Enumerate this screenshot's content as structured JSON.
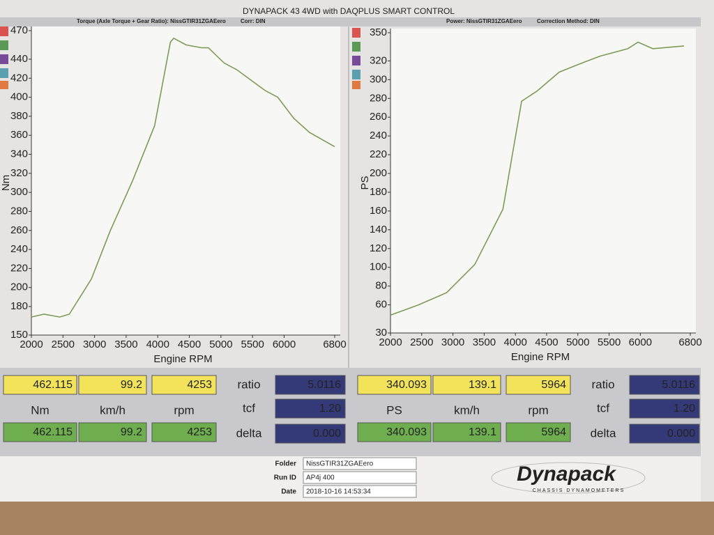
{
  "header": "DYNAPACK 43 4WD with DAQPLUS SMART CONTROL",
  "chart_data": [
    {
      "type": "line",
      "title": "Torque (Axle Torque + Gear Ratio): NissGTIR31ZGAEero",
      "corr": "Corr: DIN",
      "x_label": "Engine RPM",
      "y_label": "Nm",
      "color": "#7d9a55",
      "grid": false,
      "x": [
        2000,
        2200,
        2450,
        2600,
        2950,
        3250,
        3600,
        3950,
        4200,
        4253,
        4450,
        4700,
        4800,
        5050,
        5250,
        5700,
        5900,
        6150,
        6400,
        6800
      ],
      "values": [
        169,
        172,
        169,
        172,
        209,
        260,
        312,
        370,
        458,
        462,
        455,
        452,
        452,
        436,
        429,
        407,
        400,
        378,
        363,
        348
      ],
      "xlim": [
        2000,
        6800
      ],
      "xticks": [
        2000,
        2500,
        3000,
        3500,
        4000,
        4500,
        5000,
        5500,
        6000,
        6800
      ],
      "ylim": [
        150,
        470
      ],
      "yticks": [
        150,
        180,
        200,
        220,
        240,
        260,
        280,
        300,
        320,
        340,
        360,
        380,
        400,
        420,
        440,
        470
      ]
    },
    {
      "type": "line",
      "title": "Power: NissGTIR31ZGAEero",
      "corr": "Correction Method: DIN",
      "x_label": "Engine RPM",
      "y_label": "PS",
      "color": "#7d9a55",
      "grid": false,
      "x": [
        2000,
        2450,
        2900,
        3350,
        3800,
        4100,
        4350,
        4700,
        5000,
        5350,
        5800,
        5964,
        6200,
        6700
      ],
      "values": [
        49,
        60,
        73,
        103,
        162,
        277,
        288,
        308,
        316,
        325,
        333,
        340,
        333,
        336
      ],
      "xlim": [
        2000,
        6800
      ],
      "xticks": [
        2000,
        2500,
        3000,
        3500,
        4000,
        4500,
        5000,
        5500,
        6000,
        6800
      ],
      "ylim": [
        30,
        350
      ],
      "yticks": [
        30,
        60,
        80,
        100,
        120,
        140,
        160,
        180,
        200,
        220,
        240,
        260,
        280,
        300,
        320,
        350
      ]
    }
  ],
  "readouts": [
    {
      "row1": [
        "462.115",
        "99.2",
        "4253"
      ],
      "ratio_label": "ratio",
      "ratio": "5.0116",
      "units": [
        "Nm",
        "km/h",
        "rpm"
      ],
      "tcf_label": "tcf",
      "tcf": "1.20",
      "row3": [
        "462.115",
        "99.2",
        "4253"
      ],
      "delta_label": "delta",
      "delta": "0.000"
    },
    {
      "row1": [
        "340.093",
        "139.1",
        "5964"
      ],
      "ratio_label": "ratio",
      "ratio": "5.0116",
      "units": [
        "PS",
        "km/h",
        "rpm"
      ],
      "tcf_label": "tcf",
      "tcf": "1.20",
      "row3": [
        "340.093",
        "139.1",
        "5964"
      ],
      "delta_label": "delta",
      "delta": "0.000"
    }
  ],
  "footer": {
    "fields": [
      {
        "label": "Folder",
        "value": "NissGTIR31ZGAEero"
      },
      {
        "label": "Run ID",
        "value": "AP4j 400"
      },
      {
        "label": "Date",
        "value": "2018-10-16 14:53:34"
      }
    ],
    "logo": "Dynapack",
    "logo_sub": "CHASSIS DYNAMOMETERS"
  }
}
